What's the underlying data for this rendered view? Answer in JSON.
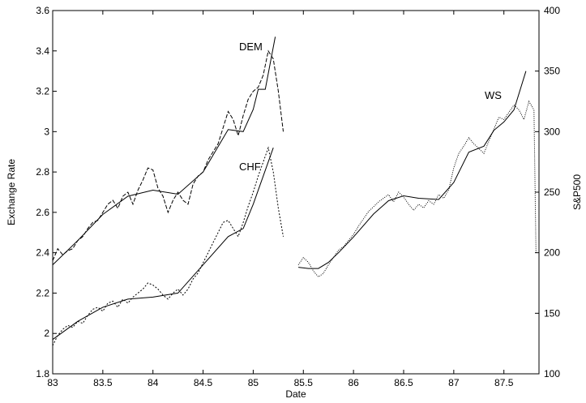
{
  "chart_data": {
    "type": "line",
    "xlabel": "Date",
    "ylabel_left": "Exchange Rate",
    "ylabel_right": "S&P500",
    "xlim": [
      83,
      87.85
    ],
    "ylim_left": [
      1.8,
      3.6
    ],
    "ylim_right": [
      100,
      400
    ],
    "x_ticks": [
      "83",
      "83.5",
      "84",
      "84.5",
      "85",
      "85.5",
      "86",
      "86.5",
      "87",
      "87.5"
    ],
    "y_ticks_left": [
      "1.8",
      "2",
      "2.2",
      "2.4",
      "2.6",
      "2.8",
      "3",
      "3.2",
      "3.4",
      "3.6"
    ],
    "y_ticks_right": [
      "100",
      "150",
      "200",
      "250",
      "300",
      "350",
      "400"
    ],
    "grid": false,
    "legend": "none",
    "series": [
      {
        "name": "DEM",
        "axis": "left",
        "points": [
          [
            83.0,
            2.36
          ],
          [
            83.05,
            2.42
          ],
          [
            83.1,
            2.39
          ],
          [
            83.15,
            2.41
          ],
          [
            83.2,
            2.42
          ],
          [
            83.25,
            2.46
          ],
          [
            83.3,
            2.48
          ],
          [
            83.35,
            2.52
          ],
          [
            83.4,
            2.55
          ],
          [
            83.45,
            2.56
          ],
          [
            83.5,
            2.6
          ],
          [
            83.55,
            2.64
          ],
          [
            83.6,
            2.66
          ],
          [
            83.65,
            2.62
          ],
          [
            83.7,
            2.68
          ],
          [
            83.75,
            2.7
          ],
          [
            83.8,
            2.64
          ],
          [
            83.85,
            2.71
          ],
          [
            83.9,
            2.76
          ],
          [
            83.95,
            2.82
          ],
          [
            84.0,
            2.81
          ],
          [
            84.05,
            2.72
          ],
          [
            84.1,
            2.68
          ],
          [
            84.15,
            2.6
          ],
          [
            84.2,
            2.66
          ],
          [
            84.25,
            2.7
          ],
          [
            84.3,
            2.66
          ],
          [
            84.35,
            2.64
          ],
          [
            84.4,
            2.74
          ],
          [
            84.45,
            2.78
          ],
          [
            84.5,
            2.8
          ],
          [
            84.55,
            2.86
          ],
          [
            84.6,
            2.9
          ],
          [
            84.65,
            2.94
          ],
          [
            84.7,
            3.02
          ],
          [
            84.75,
            3.1
          ],
          [
            84.8,
            3.06
          ],
          [
            84.85,
            2.98
          ],
          [
            84.9,
            3.08
          ],
          [
            84.95,
            3.16
          ],
          [
            85.0,
            3.2
          ],
          [
            85.05,
            3.22
          ],
          [
            85.1,
            3.28
          ],
          [
            85.15,
            3.4
          ],
          [
            85.2,
            3.36
          ],
          [
            85.25,
            3.2
          ],
          [
            85.3,
            3.0
          ]
        ],
        "trend": [
          [
            83.0,
            2.34
          ],
          [
            83.25,
            2.46
          ],
          [
            83.5,
            2.59
          ],
          [
            83.75,
            2.68
          ],
          [
            84.0,
            2.71
          ],
          [
            84.25,
            2.69
          ],
          [
            84.5,
            2.8
          ],
          [
            84.75,
            3.01
          ],
          [
            84.9,
            3.0
          ],
          [
            85.0,
            3.11
          ],
          [
            85.05,
            3.21
          ],
          [
            85.12,
            3.21
          ],
          [
            85.22,
            3.47
          ]
        ]
      },
      {
        "name": "CHF",
        "axis": "left",
        "points": [
          [
            83.0,
            1.94
          ],
          [
            83.05,
            1.99
          ],
          [
            83.1,
            2.02
          ],
          [
            83.15,
            2.04
          ],
          [
            83.2,
            2.03
          ],
          [
            83.25,
            2.06
          ],
          [
            83.3,
            2.05
          ],
          [
            83.35,
            2.09
          ],
          [
            83.4,
            2.12
          ],
          [
            83.45,
            2.13
          ],
          [
            83.5,
            2.11
          ],
          [
            83.55,
            2.15
          ],
          [
            83.6,
            2.16
          ],
          [
            83.65,
            2.13
          ],
          [
            83.7,
            2.17
          ],
          [
            83.75,
            2.15
          ],
          [
            83.8,
            2.18
          ],
          [
            83.85,
            2.2
          ],
          [
            83.9,
            2.22
          ],
          [
            83.95,
            2.25
          ],
          [
            84.0,
            2.24
          ],
          [
            84.05,
            2.22
          ],
          [
            84.1,
            2.19
          ],
          [
            84.15,
            2.17
          ],
          [
            84.2,
            2.2
          ],
          [
            84.25,
            2.22
          ],
          [
            84.3,
            2.19
          ],
          [
            84.35,
            2.22
          ],
          [
            84.4,
            2.27
          ],
          [
            84.45,
            2.3
          ],
          [
            84.5,
            2.35
          ],
          [
            84.55,
            2.4
          ],
          [
            84.6,
            2.45
          ],
          [
            84.65,
            2.5
          ],
          [
            84.7,
            2.55
          ],
          [
            84.75,
            2.56
          ],
          [
            84.8,
            2.52
          ],
          [
            84.85,
            2.48
          ],
          [
            84.9,
            2.55
          ],
          [
            84.95,
            2.63
          ],
          [
            85.0,
            2.7
          ],
          [
            85.05,
            2.78
          ],
          [
            85.1,
            2.85
          ],
          [
            85.15,
            2.92
          ],
          [
            85.2,
            2.8
          ],
          [
            85.25,
            2.62
          ],
          [
            85.3,
            2.48
          ]
        ],
        "trend": [
          [
            83.0,
            1.97
          ],
          [
            83.25,
            2.06
          ],
          [
            83.5,
            2.13
          ],
          [
            83.75,
            2.17
          ],
          [
            84.0,
            2.18
          ],
          [
            84.25,
            2.2
          ],
          [
            84.5,
            2.34
          ],
          [
            84.75,
            2.48
          ],
          [
            84.9,
            2.52
          ],
          [
            85.0,
            2.64
          ],
          [
            85.1,
            2.78
          ],
          [
            85.2,
            2.92
          ]
        ]
      },
      {
        "name": "WS",
        "axis": "right",
        "points": [
          [
            85.45,
            190
          ],
          [
            85.5,
            196
          ],
          [
            85.55,
            192
          ],
          [
            85.6,
            185
          ],
          [
            85.65,
            180
          ],
          [
            85.7,
            183
          ],
          [
            85.75,
            190
          ],
          [
            85.8,
            196
          ],
          [
            85.85,
            202
          ],
          [
            85.9,
            205
          ],
          [
            85.95,
            210
          ],
          [
            86.0,
            215
          ],
          [
            86.05,
            222
          ],
          [
            86.1,
            228
          ],
          [
            86.15,
            234
          ],
          [
            86.2,
            238
          ],
          [
            86.25,
            242
          ],
          [
            86.3,
            245
          ],
          [
            86.35,
            248
          ],
          [
            86.4,
            242
          ],
          [
            86.45,
            250
          ],
          [
            86.5,
            246
          ],
          [
            86.55,
            240
          ],
          [
            86.6,
            235
          ],
          [
            86.65,
            240
          ],
          [
            86.7,
            237
          ],
          [
            86.75,
            243
          ],
          [
            86.8,
            240
          ],
          [
            86.85,
            248
          ],
          [
            86.9,
            245
          ],
          [
            86.95,
            252
          ],
          [
            87.0,
            270
          ],
          [
            87.05,
            282
          ],
          [
            87.1,
            288
          ],
          [
            87.15,
            295
          ],
          [
            87.2,
            290
          ],
          [
            87.25,
            286
          ],
          [
            87.3,
            282
          ],
          [
            87.35,
            292
          ],
          [
            87.4,
            302
          ],
          [
            87.45,
            312
          ],
          [
            87.5,
            310
          ],
          [
            87.55,
            316
          ],
          [
            87.6,
            322
          ],
          [
            87.65,
            318
          ],
          [
            87.7,
            310
          ],
          [
            87.75,
            325
          ],
          [
            87.8,
            318
          ],
          [
            87.82,
            200
          ]
        ],
        "trend": [
          [
            85.45,
            188
          ],
          [
            85.55,
            187
          ],
          [
            85.65,
            187
          ],
          [
            85.75,
            192
          ],
          [
            85.85,
            200
          ],
          [
            86.0,
            213
          ],
          [
            86.2,
            232
          ],
          [
            86.35,
            243
          ],
          [
            86.5,
            247
          ],
          [
            86.65,
            245
          ],
          [
            86.85,
            244
          ],
          [
            87.0,
            258
          ],
          [
            87.15,
            283
          ],
          [
            87.3,
            288
          ],
          [
            87.4,
            301
          ],
          [
            87.5,
            308
          ],
          [
            87.6,
            318
          ],
          [
            87.72,
            350
          ]
        ]
      }
    ]
  }
}
